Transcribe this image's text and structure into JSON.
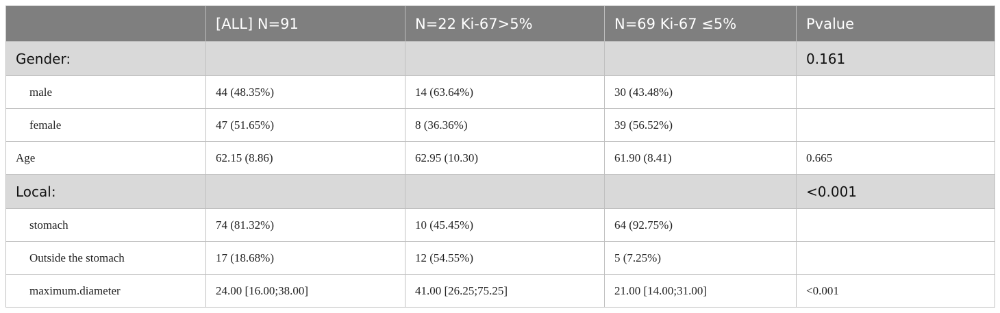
{
  "table": {
    "header": [
      "[ALL] N=91",
      "N=22 Ki-67>5%",
      "N=69 Ki-67 ≤5%",
      "Pvalue"
    ],
    "rows": [
      {
        "label": "Gender:",
        "p": "0.161"
      },
      {
        "label": "male",
        "cells": [
          "44 (48.35%)",
          "14 (63.64%)",
          "30 (43.48%)"
        ]
      },
      {
        "label": "female",
        "cells": [
          "47 (51.65%)",
          "8 (36.36%)",
          "39 (56.52%)"
        ]
      },
      {
        "label": "Age",
        "cells": [
          "62.15 (8.86)",
          "62.95 (10.30)",
          "61.90 (8.41)"
        ],
        "p": "0.665"
      },
      {
        "label": "Local:",
        "p": "<0.001"
      },
      {
        "label": "stomach",
        "cells": [
          "74 (81.32%)",
          "10 (45.45%)",
          "64 (92.75%)"
        ]
      },
      {
        "label": "Outside the stomach",
        "cells": [
          "17 (18.68%)",
          "12 (54.55%)",
          "5 (7.25%)"
        ]
      },
      {
        "label": "maximum.diameter",
        "cells": [
          "24.00 [16.00;38.00]",
          "41.00 [26.25;75.25]",
          "21.00 [14.00;31.00]"
        ],
        "p": "<0.001"
      }
    ]
  }
}
